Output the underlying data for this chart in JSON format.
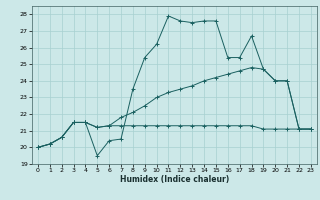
{
  "title": "",
  "xlabel": "Humidex (Indice chaleur)",
  "ylabel": "",
  "bg_color": "#cce8e8",
  "line_color": "#1a6060",
  "grid_color": "#a8d0d0",
  "xlim": [
    -0.5,
    23.5
  ],
  "ylim": [
    19,
    28.5
  ],
  "yticks": [
    19,
    20,
    21,
    22,
    23,
    24,
    25,
    26,
    27,
    28
  ],
  "xticks": [
    0,
    1,
    2,
    3,
    4,
    5,
    6,
    7,
    8,
    9,
    10,
    11,
    12,
    13,
    14,
    15,
    16,
    17,
    18,
    19,
    20,
    21,
    22,
    23
  ],
  "line1_x": [
    0,
    1,
    2,
    3,
    4,
    5,
    6,
    7,
    8,
    9,
    10,
    11,
    12,
    13,
    14,
    15,
    16,
    17,
    18,
    19,
    20,
    21,
    22,
    23
  ],
  "line1_y": [
    20.0,
    20.2,
    20.6,
    21.5,
    21.5,
    19.5,
    20.4,
    20.5,
    23.5,
    25.4,
    26.2,
    27.9,
    27.6,
    27.5,
    27.6,
    27.6,
    25.4,
    25.4,
    26.7,
    24.7,
    24.0,
    24.0,
    21.1,
    21.1
  ],
  "line2_x": [
    0,
    1,
    2,
    3,
    4,
    5,
    6,
    7,
    8,
    9,
    10,
    11,
    12,
    13,
    14,
    15,
    16,
    17,
    18,
    19,
    20,
    21,
    22,
    23
  ],
  "line2_y": [
    20.0,
    20.2,
    20.6,
    21.5,
    21.5,
    21.2,
    21.3,
    21.8,
    22.1,
    22.5,
    23.0,
    23.3,
    23.5,
    23.7,
    24.0,
    24.2,
    24.4,
    24.6,
    24.8,
    24.7,
    24.0,
    24.0,
    21.1,
    21.1
  ],
  "line3_x": [
    0,
    1,
    2,
    3,
    4,
    5,
    6,
    7,
    8,
    9,
    10,
    11,
    12,
    13,
    14,
    15,
    16,
    17,
    18,
    19,
    20,
    21,
    22,
    23
  ],
  "line3_y": [
    20.0,
    20.2,
    20.6,
    21.5,
    21.5,
    21.2,
    21.3,
    21.3,
    21.3,
    21.3,
    21.3,
    21.3,
    21.3,
    21.3,
    21.3,
    21.3,
    21.3,
    21.3,
    21.3,
    21.1,
    21.1,
    21.1,
    21.1,
    21.1
  ]
}
